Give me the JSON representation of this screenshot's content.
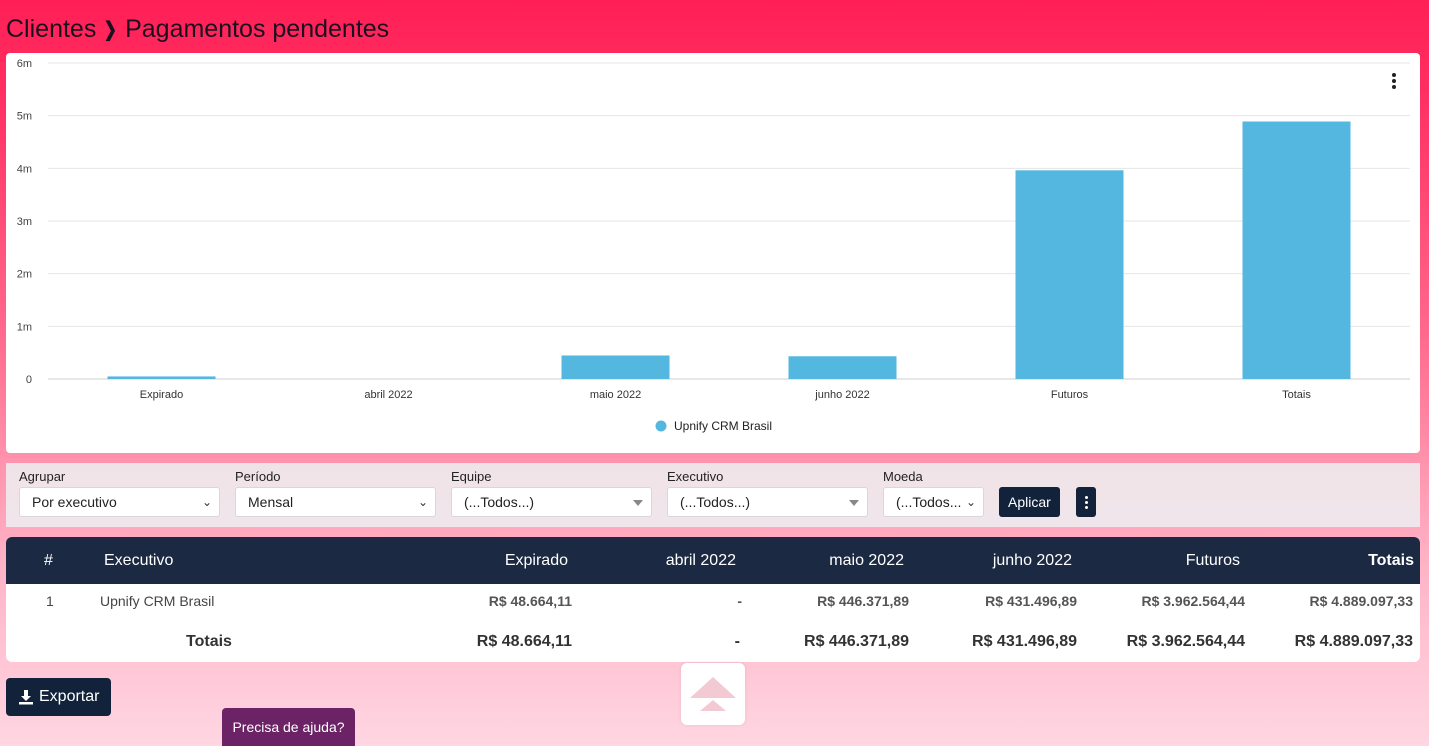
{
  "header": {
    "crumb_parent": "Clientes",
    "crumb_current": "Pagamentos pendentes"
  },
  "chart_data": {
    "type": "bar",
    "categories": [
      "Expirado",
      "abril 2022",
      "maio 2022",
      "junho 2022",
      "Futuros",
      "Totais"
    ],
    "series": [
      {
        "name": "Upnify CRM Brasil",
        "values": [
          48664.11,
          0,
          446371.89,
          431496.89,
          3962564.44,
          4889097.33
        ],
        "color": "#53b7e0"
      }
    ],
    "ylim": [
      0,
      6000000
    ],
    "yticks": [
      "0",
      "1m",
      "2m",
      "3m",
      "4m",
      "5m",
      "6m"
    ],
    "grid": true,
    "legend": "bottom-center"
  },
  "filters": {
    "group": {
      "label": "Agrupar",
      "value": "Por executivo"
    },
    "period": {
      "label": "Período",
      "value": "Mensal"
    },
    "team": {
      "label": "Equipe",
      "value": "(...Todos...)"
    },
    "exec": {
      "label": "Executivo",
      "value": "(...Todos...)"
    },
    "currency": {
      "label": "Moeda",
      "value": "(...Todos..."
    },
    "apply_label": "Aplicar"
  },
  "table": {
    "headers": [
      "#",
      "Executivo",
      "Expirado",
      "abril 2022",
      "maio 2022",
      "junho 2022",
      "Futuros",
      "Totais"
    ],
    "rows": [
      [
        "1",
        "Upnify CRM Brasil",
        "R$ 48.664,11",
        "-",
        "R$ 446.371,89",
        "R$ 431.496,89",
        "R$ 3.962.564,44",
        "R$ 4.889.097,33"
      ]
    ],
    "totals": [
      "Totais",
      "R$ 48.664,11",
      "-",
      "R$ 446.371,89",
      "R$ 431.496,89",
      "R$ 3.962.564,44",
      "R$ 4.889.097,33"
    ]
  },
  "actions": {
    "export_label": "Exportar",
    "help_label": "Precisa de ajuda?"
  },
  "colors": {
    "accent": "#12223a",
    "bar": "#53b7e0",
    "help": "#6b2366",
    "table_header": "#1b2942"
  },
  "icons": {
    "separator": "chevron-right-icon",
    "export": "download-icon",
    "menu": "kebab-icon",
    "top": "arrow-up-icon"
  }
}
